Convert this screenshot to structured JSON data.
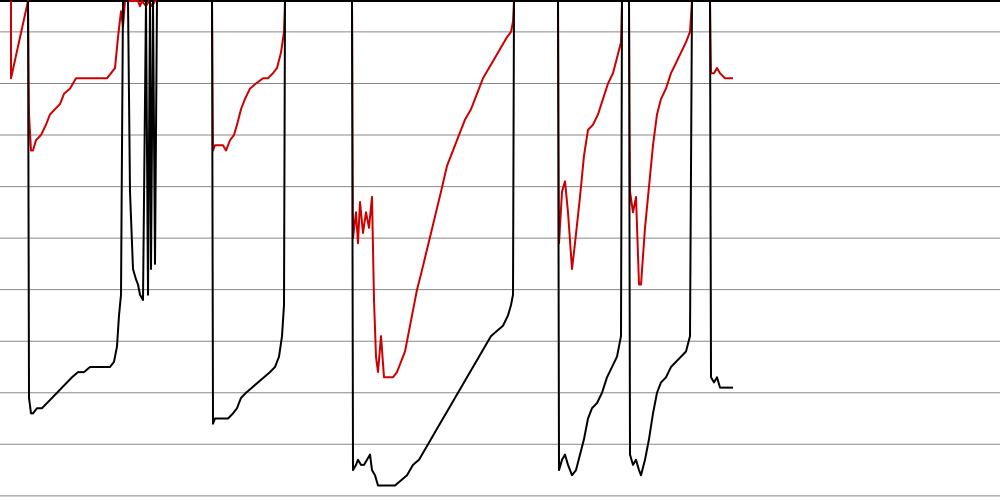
{
  "chart_data": {
    "type": "line",
    "title": "",
    "xlabel": "",
    "ylabel": "",
    "grid": true,
    "legend": "none",
    "xlim": [
      0,
      1000
    ],
    "ylim": [
      0,
      9.7
    ],
    "gridlines_y": [
      0.1,
      1.1,
      2.1,
      3.1,
      4.1,
      5.1,
      6.1,
      7.1,
      8.1,
      9.1
    ],
    "series": [
      {
        "color": "#cc0000",
        "points": [
          [
            11,
            9.7
          ],
          [
            11,
            8.2
          ],
          [
            28,
            9.7
          ],
          [
            29,
            7.5
          ],
          [
            31,
            6.8
          ],
          [
            33,
            6.8
          ],
          [
            36,
            7.0
          ],
          [
            41,
            7.1
          ],
          [
            46,
            7.3
          ],
          [
            50,
            7.5
          ],
          [
            55,
            7.6
          ],
          [
            60,
            7.7
          ],
          [
            64,
            7.9
          ],
          [
            70,
            8.0
          ],
          [
            76,
            8.2
          ],
          [
            82,
            8.2
          ],
          [
            88,
            8.2
          ],
          [
            95,
            8.2
          ],
          [
            101,
            8.2
          ],
          [
            107,
            8.2
          ],
          [
            111,
            8.3
          ],
          [
            115,
            8.4
          ],
          [
            118,
            9.0
          ],
          [
            121,
            9.5
          ],
          [
            123,
            9.2
          ],
          [
            125,
            9.7
          ],
          [
            138,
            9.7
          ],
          [
            140,
            9.6
          ],
          [
            142,
            9.7
          ],
          [
            146,
            9.6
          ],
          [
            149,
            9.7
          ],
          [
            152,
            9.6
          ],
          [
            155,
            9.7
          ],
          [
            212,
            9.7
          ],
          [
            213,
            6.8
          ],
          [
            215,
            6.9
          ],
          [
            218,
            6.9
          ],
          [
            223,
            6.9
          ],
          [
            226,
            6.8
          ],
          [
            230,
            7.0
          ],
          [
            234,
            7.1
          ],
          [
            237,
            7.3
          ],
          [
            241,
            7.6
          ],
          [
            245,
            7.8
          ],
          [
            250,
            8.0
          ],
          [
            256,
            8.1
          ],
          [
            263,
            8.2
          ],
          [
            268,
            8.2
          ],
          [
            273,
            8.3
          ],
          [
            277,
            8.4
          ],
          [
            281,
            8.7
          ],
          [
            284,
            9.1
          ],
          [
            285,
            9.7
          ],
          [
            352,
            9.7
          ],
          [
            353,
            5.1
          ],
          [
            356,
            5.6
          ],
          [
            358,
            5.0
          ],
          [
            360,
            5.8
          ],
          [
            363,
            5.2
          ],
          [
            366,
            5.6
          ],
          [
            369,
            5.3
          ],
          [
            372,
            5.9
          ],
          [
            374,
            3.9
          ],
          [
            376,
            2.8
          ],
          [
            378,
            2.5
          ],
          [
            381,
            3.2
          ],
          [
            384,
            2.4
          ],
          [
            388,
            2.4
          ],
          [
            393,
            2.4
          ],
          [
            397,
            2.5
          ],
          [
            401,
            2.7
          ],
          [
            405,
            2.9
          ],
          [
            409,
            3.3
          ],
          [
            413,
            3.7
          ],
          [
            417,
            4.1
          ],
          [
            421,
            4.4
          ],
          [
            426,
            4.8
          ],
          [
            431,
            5.2
          ],
          [
            436,
            5.6
          ],
          [
            441,
            6.0
          ],
          [
            447,
            6.5
          ],
          [
            453,
            6.8
          ],
          [
            459,
            7.1
          ],
          [
            465,
            7.4
          ],
          [
            471,
            7.6
          ],
          [
            477,
            7.9
          ],
          [
            483,
            8.2
          ],
          [
            489,
            8.4
          ],
          [
            495,
            8.6
          ],
          [
            501,
            8.8
          ],
          [
            507,
            9.0
          ],
          [
            511,
            9.1
          ],
          [
            513,
            9.3
          ],
          [
            514,
            9.7
          ],
          [
            558,
            9.7
          ],
          [
            559,
            5.0
          ],
          [
            562,
            6.0
          ],
          [
            565,
            6.2
          ],
          [
            568,
            5.6
          ],
          [
            572,
            4.5
          ],
          [
            575,
            5.0
          ],
          [
            580,
            5.9
          ],
          [
            584,
            6.7
          ],
          [
            588,
            7.2
          ],
          [
            593,
            7.3
          ],
          [
            598,
            7.5
          ],
          [
            603,
            7.8
          ],
          [
            608,
            8.1
          ],
          [
            613,
            8.3
          ],
          [
            617,
            8.6
          ],
          [
            621,
            8.9
          ],
          [
            622,
            9.7
          ],
          [
            629,
            9.7
          ],
          [
            630,
            6.0
          ],
          [
            633,
            5.6
          ],
          [
            636,
            5.9
          ],
          [
            639,
            4.2
          ],
          [
            641,
            4.2
          ],
          [
            645,
            5.3
          ],
          [
            649,
            6.1
          ],
          [
            653,
            6.9
          ],
          [
            657,
            7.5
          ],
          [
            661,
            7.8
          ],
          [
            666,
            8.0
          ],
          [
            671,
            8.3
          ],
          [
            676,
            8.5
          ],
          [
            681,
            8.7
          ],
          [
            686,
            8.9
          ],
          [
            690,
            9.1
          ],
          [
            692,
            9.7
          ],
          [
            710,
            9.7
          ],
          [
            711,
            8.3
          ],
          [
            714,
            8.3
          ],
          [
            717,
            8.4
          ],
          [
            720,
            8.3
          ],
          [
            725,
            8.2
          ],
          [
            733,
            8.2
          ]
        ]
      },
      {
        "color": "#000000",
        "points": [
          [
            28,
            9.7
          ],
          [
            29,
            2.0
          ],
          [
            31,
            1.7
          ],
          [
            33,
            1.7
          ],
          [
            37,
            1.8
          ],
          [
            42,
            1.8
          ],
          [
            47,
            1.9
          ],
          [
            52,
            2.0
          ],
          [
            57,
            2.1
          ],
          [
            62,
            2.2
          ],
          [
            67,
            2.3
          ],
          [
            72,
            2.4
          ],
          [
            78,
            2.5
          ],
          [
            84,
            2.5
          ],
          [
            90,
            2.6
          ],
          [
            97,
            2.6
          ],
          [
            104,
            2.6
          ],
          [
            110,
            2.6
          ],
          [
            114,
            2.7
          ],
          [
            117,
            3.0
          ],
          [
            119,
            3.6
          ],
          [
            121,
            4.0
          ],
          [
            123,
            9.7
          ],
          [
            128,
            9.7
          ],
          [
            130,
            6.0
          ],
          [
            133,
            4.5
          ],
          [
            136,
            4.3
          ],
          [
            138,
            4.2
          ],
          [
            140,
            4.0
          ],
          [
            143,
            3.9
          ],
          [
            146,
            9.7
          ],
          [
            148,
            4.0
          ],
          [
            150,
            9.7
          ],
          [
            151,
            4.5
          ],
          [
            153,
            9.7
          ],
          [
            155,
            4.6
          ],
          [
            157,
            9.7
          ],
          [
            212,
            9.7
          ],
          [
            213,
            1.5
          ],
          [
            215,
            1.6
          ],
          [
            218,
            1.6
          ],
          [
            223,
            1.6
          ],
          [
            228,
            1.6
          ],
          [
            233,
            1.7
          ],
          [
            237,
            1.8
          ],
          [
            241,
            2.0
          ],
          [
            246,
            2.1
          ],
          [
            252,
            2.2
          ],
          [
            258,
            2.3
          ],
          [
            264,
            2.4
          ],
          [
            270,
            2.5
          ],
          [
            275,
            2.6
          ],
          [
            279,
            2.8
          ],
          [
            282,
            3.2
          ],
          [
            284,
            3.8
          ],
          [
            285,
            9.7
          ],
          [
            352,
            9.7
          ],
          [
            353,
            0.6
          ],
          [
            356,
            0.7
          ],
          [
            358,
            0.8
          ],
          [
            361,
            0.7
          ],
          [
            364,
            0.7
          ],
          [
            367,
            0.8
          ],
          [
            370,
            0.9
          ],
          [
            372,
            0.6
          ],
          [
            375,
            0.5
          ],
          [
            378,
            0.3
          ],
          [
            383,
            0.3
          ],
          [
            389,
            0.3
          ],
          [
            395,
            0.3
          ],
          [
            401,
            0.4
          ],
          [
            407,
            0.5
          ],
          [
            413,
            0.7
          ],
          [
            419,
            0.8
          ],
          [
            425,
            1.0
          ],
          [
            431,
            1.2
          ],
          [
            437,
            1.4
          ],
          [
            443,
            1.6
          ],
          [
            449,
            1.8
          ],
          [
            455,
            2.0
          ],
          [
            461,
            2.2
          ],
          [
            467,
            2.4
          ],
          [
            473,
            2.6
          ],
          [
            479,
            2.8
          ],
          [
            485,
            3.0
          ],
          [
            491,
            3.2
          ],
          [
            497,
            3.3
          ],
          [
            503,
            3.4
          ],
          [
            508,
            3.6
          ],
          [
            511,
            3.8
          ],
          [
            513,
            4.0
          ],
          [
            514,
            9.7
          ],
          [
            558,
            9.7
          ],
          [
            559,
            0.6
          ],
          [
            562,
            0.8
          ],
          [
            565,
            0.9
          ],
          [
            568,
            0.7
          ],
          [
            572,
            0.5
          ],
          [
            576,
            0.6
          ],
          [
            580,
            0.9
          ],
          [
            584,
            1.2
          ],
          [
            588,
            1.6
          ],
          [
            592,
            1.8
          ],
          [
            597,
            1.9
          ],
          [
            602,
            2.1
          ],
          [
            607,
            2.4
          ],
          [
            612,
            2.6
          ],
          [
            617,
            2.8
          ],
          [
            621,
            3.2
          ],
          [
            622,
            9.7
          ],
          [
            629,
            9.7
          ],
          [
            630,
            0.9
          ],
          [
            633,
            0.7
          ],
          [
            636,
            0.8
          ],
          [
            639,
            0.6
          ],
          [
            641,
            0.5
          ],
          [
            645,
            0.8
          ],
          [
            649,
            1.2
          ],
          [
            653,
            1.7
          ],
          [
            657,
            2.1
          ],
          [
            661,
            2.3
          ],
          [
            666,
            2.4
          ],
          [
            671,
            2.6
          ],
          [
            676,
            2.7
          ],
          [
            681,
            2.8
          ],
          [
            686,
            2.9
          ],
          [
            690,
            3.2
          ],
          [
            692,
            9.7
          ],
          [
            710,
            9.7
          ],
          [
            711,
            2.4
          ],
          [
            714,
            2.3
          ],
          [
            717,
            2.4
          ],
          [
            720,
            2.2
          ],
          [
            725,
            2.2
          ],
          [
            733,
            2.2
          ]
        ]
      }
    ]
  }
}
